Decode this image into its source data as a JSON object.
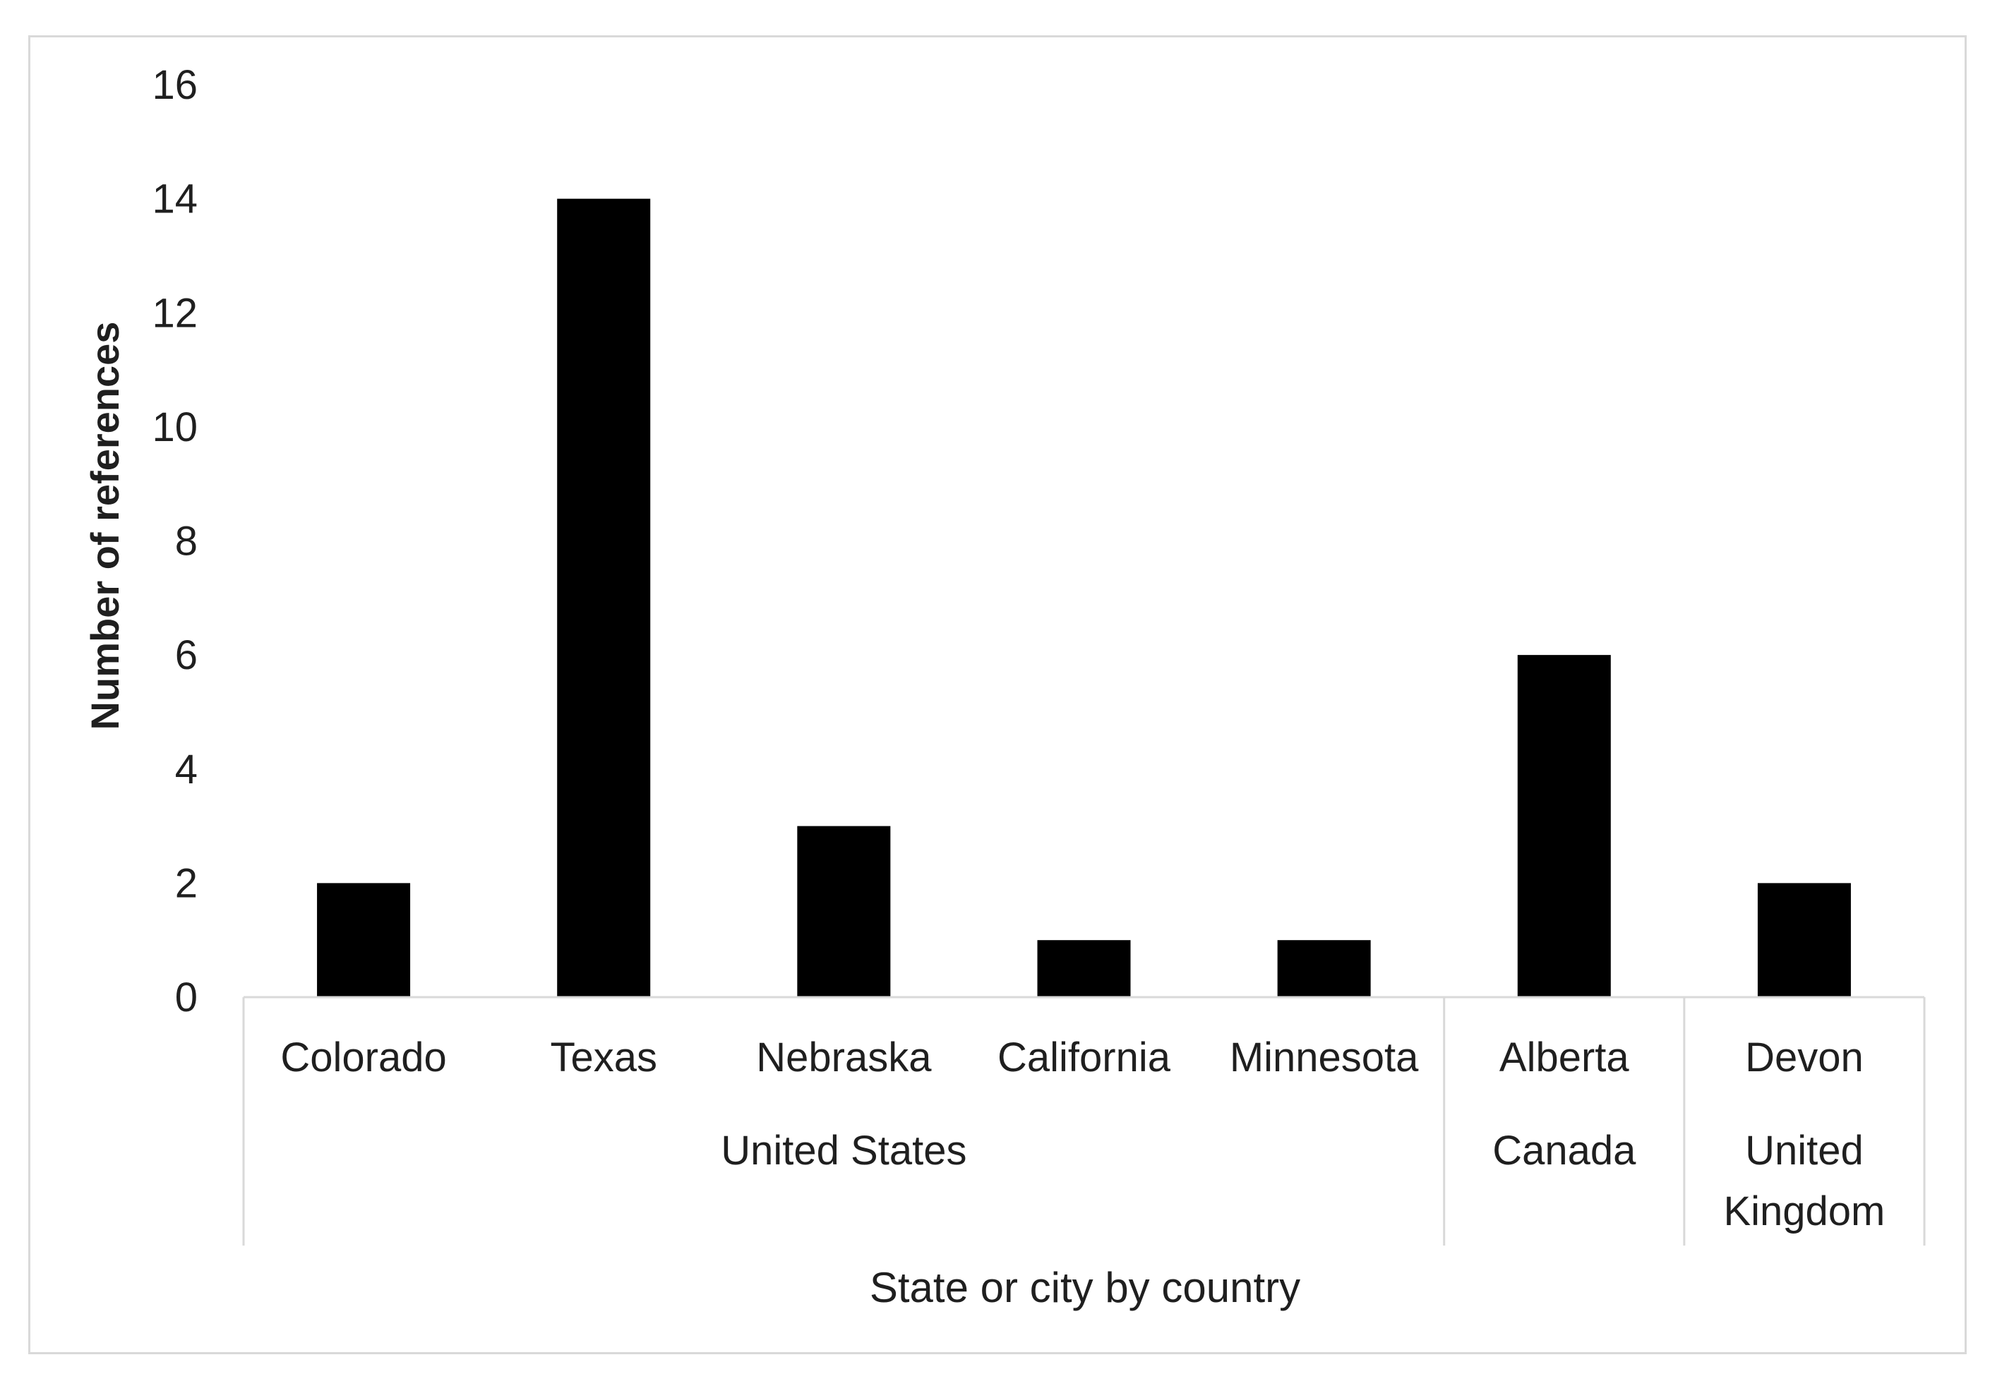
{
  "chart_data": {
    "type": "bar",
    "title": "",
    "ylabel": "Number of references",
    "xlabel": "State or city by country",
    "ylim": [
      0,
      16
    ],
    "yticks": [
      0,
      2,
      4,
      6,
      8,
      10,
      12,
      14,
      16
    ],
    "categories": [
      "Colorado",
      "Texas",
      "Nebraska",
      "California",
      "Minnesota",
      "Alberta",
      "Devon"
    ],
    "values": [
      2,
      14,
      3,
      1,
      1,
      6,
      2
    ],
    "groups": [
      {
        "name": "United States",
        "lines": [
          "United States"
        ],
        "span": [
          0,
          4
        ]
      },
      {
        "name": "Canada",
        "lines": [
          "Canada"
        ],
        "span": [
          5,
          5
        ]
      },
      {
        "name": "United Kingdom",
        "lines": [
          "United",
          "Kingdom"
        ],
        "span": [
          6,
          6
        ]
      }
    ],
    "bar_color": "#000000",
    "axis_line_color": "#d9d9d9",
    "grid": false,
    "legend": "none"
  }
}
